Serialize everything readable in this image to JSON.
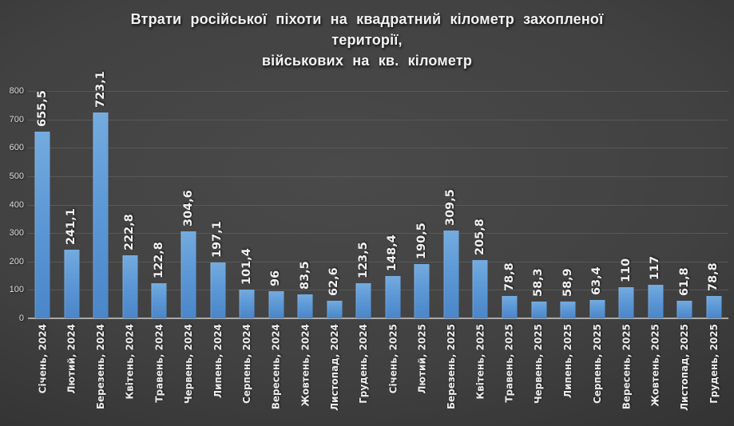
{
  "chart_data": {
    "type": "bar",
    "title": "Втрати російської піхоти на квадратний кілометр захопленої території, військових на кв. кілометр",
    "title_lines": [
      "Втрати російської піхоти на квадратний кілометр захопленої",
      "території,",
      "військових на кв. кілометр"
    ],
    "categories": [
      "Січень, 2024",
      "Лютий, 2024",
      "Березень, 2024",
      "Квітень, 2024",
      "Травень, 2024",
      "Червень, 2024",
      "Липень, 2024",
      "Серпень, 2024",
      "Вересень, 2024",
      "Жовтень, 2024",
      "Листопад, 2024",
      "Грудень, 2024",
      "Січень, 2025",
      "Лютий, 2025",
      "Березень, 2025",
      "Квітень, 2025",
      "Травень, 2025",
      "Червень, 2025",
      "Липень, 2025",
      "Серпень, 2025",
      "Вересень, 2025",
      "Жовтень, 2025",
      "Листопад, 2025",
      "Грудень, 2025"
    ],
    "values": [
      655.5,
      241.1,
      723.1,
      222.8,
      122.8,
      304.6,
      197.1,
      101.4,
      96,
      83.5,
      62.6,
      123.5,
      148.4,
      190.5,
      309.5,
      205.8,
      78.8,
      58.3,
      58.9,
      63.4,
      110,
      117,
      61.8,
      78.8
    ],
    "value_labels": [
      "655,5",
      "241,1",
      "723,1",
      "222,8",
      "122,8",
      "304,6",
      "197,1",
      "101,4",
      "96",
      "83,5",
      "62,6",
      "123,5",
      "148,4",
      "190,5",
      "309,5",
      "205,8",
      "78,8",
      "58,3",
      "58,9",
      "63,4",
      "110",
      "117",
      "61,8",
      "78,8"
    ],
    "xlabel": "",
    "ylabel": "",
    "ylim": [
      0,
      800
    ],
    "yticks": [
      0,
      100,
      200,
      300,
      400,
      500,
      600,
      700,
      800
    ],
    "grid": true,
    "legend": "none",
    "bar_color_top": "#74ABDF",
    "bar_color_bottom": "#4A86C8",
    "background_color": "#414141",
    "text_color": "#F3F3F3"
  }
}
